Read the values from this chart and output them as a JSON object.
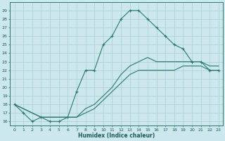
{
  "xlabel": "Humidex (Indice chaleur)",
  "background_color": "#cce8ec",
  "grid_color": "#aaccd4",
  "line_color": "#2a7a6a",
  "xlim": [
    -0.5,
    23.5
  ],
  "ylim": [
    15.5,
    30.0
  ],
  "xticks": [
    0,
    1,
    2,
    3,
    4,
    5,
    6,
    7,
    8,
    9,
    10,
    11,
    12,
    13,
    14,
    15,
    16,
    17,
    18,
    19,
    20,
    21,
    22,
    23
  ],
  "yticks": [
    16,
    17,
    18,
    19,
    20,
    21,
    22,
    23,
    24,
    25,
    26,
    27,
    28,
    29
  ],
  "series": [
    {
      "x": [
        0,
        1,
        2,
        3,
        4,
        5,
        6,
        7,
        8,
        9,
        10,
        11,
        12,
        13,
        14,
        15,
        16,
        17,
        18,
        19,
        20,
        21,
        22,
        23
      ],
      "y": [
        18,
        17,
        16,
        16.5,
        16,
        16,
        16.5,
        19.5,
        22,
        22,
        25,
        26,
        28,
        29,
        29,
        28,
        27,
        26,
        25,
        24.5,
        23,
        23,
        22,
        22
      ],
      "marker": true
    },
    {
      "x": [
        0,
        3,
        7,
        8,
        9,
        10,
        11,
        12,
        13,
        14,
        15,
        16,
        17,
        18,
        19,
        20,
        21,
        22,
        23
      ],
      "y": [
        18,
        16.5,
        16.5,
        17.5,
        18,
        19,
        20,
        21.5,
        22.5,
        23,
        23.5,
        23,
        23,
        23,
        23,
        23,
        23,
        22.5,
        22.5
      ],
      "marker": false
    },
    {
      "x": [
        0,
        3,
        7,
        8,
        9,
        10,
        11,
        12,
        13,
        14,
        15,
        16,
        17,
        18,
        19,
        20,
        21,
        22,
        23
      ],
      "y": [
        18,
        16.5,
        16.5,
        17,
        17.5,
        18.5,
        19.5,
        20.5,
        21.5,
        22,
        22,
        22,
        22,
        22,
        22.5,
        22.5,
        22.5,
        22,
        22
      ],
      "marker": false
    }
  ]
}
